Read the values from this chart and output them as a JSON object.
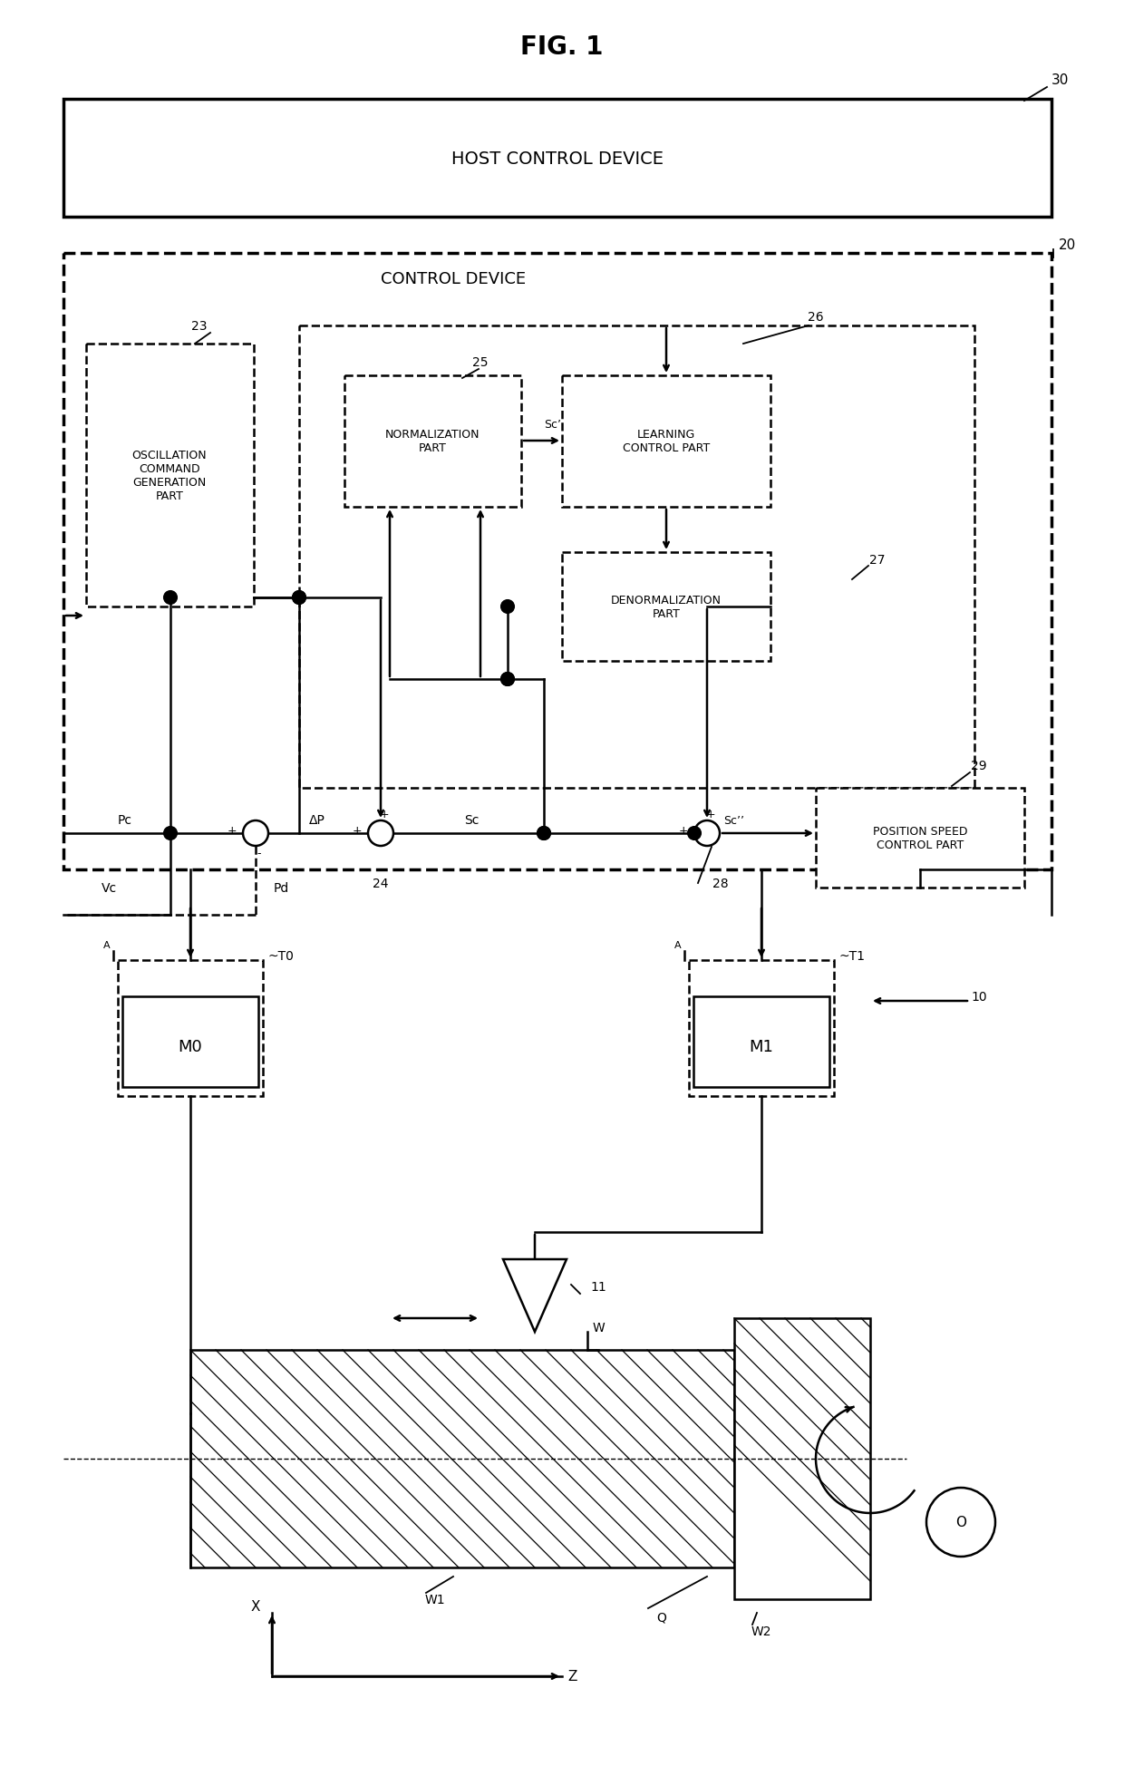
{
  "fig_title": "FIG. 1",
  "bg_color": "#ffffff",
  "labels": {
    "host_control": "HOST CONTROL DEVICE",
    "control_device": "CONTROL DEVICE",
    "oscillation": "OSCILLATION\nCOMMAND\nGENERATION\nPART",
    "normalization": "NORMALIZATION\nPART",
    "learning": "LEARNING\nCONTROL PART",
    "denormalization": "DENORMALIZATION\nPART",
    "position_speed": "POSITION SPEED\nCONTROL PART",
    "M0": "M0",
    "M1": "M1",
    "num_30": "30",
    "num_20": "20",
    "num_23": "23",
    "num_25": "25",
    "num_26": "26",
    "num_27": "27",
    "num_24": "24",
    "num_28": "28",
    "num_29": "29",
    "num_10": "10",
    "num_T0": "~T0",
    "num_T1": "~T1",
    "Pc": "Pc",
    "Vc": "Vc",
    "Pd": "Pd",
    "Sc": "Sc",
    "Sc_prime": "Sc’",
    "Sc_dprime": "Sc’’",
    "deltaP": "ΔP",
    "W": "W",
    "W1": "W1",
    "W2": "W2",
    "Q": "Q",
    "O": "O",
    "X_label": "X",
    "Z_label": "Z",
    "num_11": "11"
  },
  "layout": {
    "fig_w": 12.4,
    "fig_h": 19.49,
    "dpi": 100
  }
}
